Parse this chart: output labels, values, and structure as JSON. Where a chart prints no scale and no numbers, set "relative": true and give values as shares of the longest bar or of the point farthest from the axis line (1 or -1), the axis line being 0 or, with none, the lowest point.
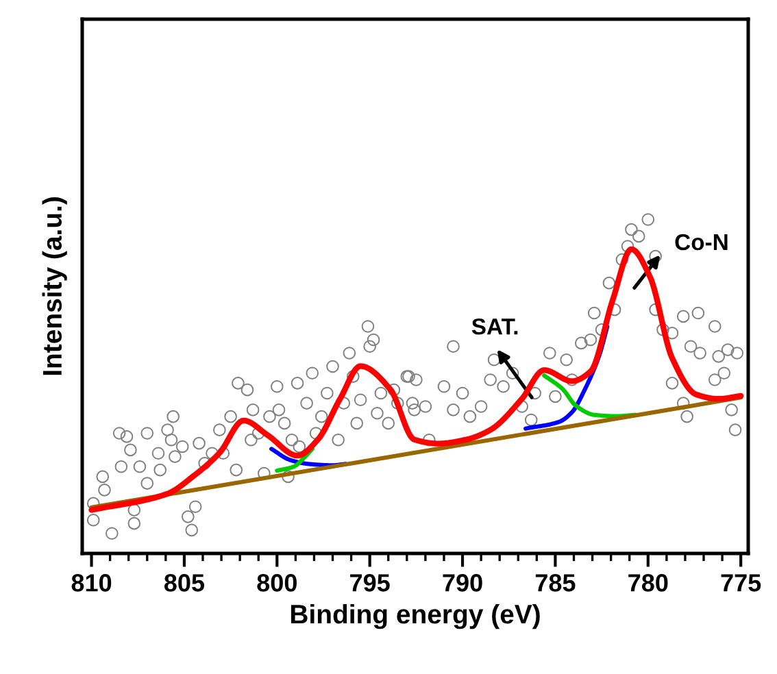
{
  "chart_data": {
    "type": "line",
    "xlabel": "Binding energy (eV)",
    "ylabel": "Intensity (a.u.)",
    "relative": true,
    "grid": false,
    "xlim": [
      810.5,
      774.6
    ],
    "xticks": [
      810,
      {
        "value": 809,
        "label": null
      },
      {
        "value": 808,
        "label": null
      },
      {
        "value": 807,
        "label": null
      },
      {
        "value": 806,
        "label": null
      },
      805,
      {
        "value": 804,
        "label": null
      },
      {
        "value": 803,
        "label": null
      },
      {
        "value": 802,
        "label": null
      },
      {
        "value": 801,
        "label": null
      },
      800,
      {
        "value": 799,
        "label": null
      },
      {
        "value": 798,
        "label": null
      },
      {
        "value": 797,
        "label": null
      },
      {
        "value": 796,
        "label": null
      },
      795,
      {
        "value": 794,
        "label": null
      },
      {
        "value": 793,
        "label": null
      },
      {
        "value": 792,
        "label": null
      },
      {
        "value": 791,
        "label": null
      },
      790,
      {
        "value": 789,
        "label": null
      },
      {
        "value": 788,
        "label": null
      },
      {
        "value": 787,
        "label": null
      },
      {
        "value": 786,
        "label": null
      },
      785,
      {
        "value": 784,
        "label": null
      },
      {
        "value": 783,
        "label": null
      },
      {
        "value": 782,
        "label": null
      },
      {
        "value": 781,
        "label": null
      },
      780,
      {
        "value": 779,
        "label": null
      },
      {
        "value": 778,
        "label": null
      },
      {
        "value": 777,
        "label": null
      },
      {
        "value": 776,
        "label": null
      },
      775
    ],
    "series": [
      {
        "type": "scatter",
        "marker": "circle",
        "color": "#808080",
        "x": [
          809.9,
          809.9,
          809.4,
          809.3,
          808.9,
          808.5,
          808.4,
          808.1,
          807.9,
          807.7,
          807.7,
          807.4,
          807.0,
          807.0,
          806.4,
          806.3,
          805.9,
          805.7,
          805.6,
          805.5,
          805.1,
          804.8,
          804.6,
          804.4,
          804.2,
          803.9,
          803.5,
          803.1,
          802.9,
          802.5,
          802.2,
          802.1,
          801.6,
          801.4,
          801.3,
          801.0,
          800.7,
          800.4,
          800.0,
          799.9,
          799.6,
          799.4,
          799.2,
          798.9,
          798.8,
          798.4,
          798.1,
          797.9,
          797.6,
          797.3,
          797.0,
          796.7,
          796.4,
          796.1,
          795.9,
          795.7,
          795.5,
          795.1,
          795.0,
          794.8,
          794.6,
          794.4,
          794.0,
          793.7,
          793.5,
          792.9,
          792.6,
          793.0,
          792.5,
          792.7,
          792.0,
          791.8,
          791.0,
          790.5,
          790.5,
          790.0,
          789.6,
          789.0,
          788.5,
          788.3,
          787.8,
          787.3,
          786.8,
          786.3,
          786.1,
          785.3,
          785.0,
          784.4,
          784.1,
          783.6,
          783.1,
          782.9,
          782.5,
          782.1,
          781.8,
          781.4,
          781.1,
          780.9,
          780.5,
          780.0,
          779.6,
          779.6,
          779.2,
          778.7,
          778.1,
          777.7,
          777.3,
          777.2,
          776.4,
          776.2,
          775.9,
          775.7,
          775.2,
          775.5,
          775.3,
          778.1,
          777.9,
          778.7,
          776.4
        ],
        "values": [
          0.1,
          0.15,
          0.23,
          0.19,
          0.06,
          0.36,
          0.26,
          0.35,
          0.31,
          0.13,
          0.09,
          0.26,
          0.21,
          0.36,
          0.3,
          0.25,
          0.37,
          0.34,
          0.41,
          0.29,
          0.32,
          0.11,
          0.07,
          0.14,
          0.33,
          0.27,
          0.3,
          0.37,
          0.3,
          0.41,
          0.25,
          0.51,
          0.49,
          0.34,
          0.43,
          0.36,
          0.24,
          0.41,
          0.5,
          0.43,
          0.39,
          0.23,
          0.34,
          0.51,
          0.32,
          0.45,
          0.54,
          0.36,
          0.41,
          0.48,
          0.56,
          0.34,
          0.45,
          0.6,
          0.53,
          0.39,
          0.46,
          0.68,
          0.62,
          0.64,
          0.42,
          0.48,
          0.39,
          0.49,
          0.45,
          0.53,
          0.43,
          0.53,
          0.52,
          0.45,
          0.44,
          0.34,
          0.5,
          0.62,
          0.43,
          0.48,
          0.41,
          0.44,
          0.52,
          0.58,
          0.5,
          0.54,
          0.44,
          0.4,
          0.48,
          0.6,
          0.47,
          0.58,
          0.52,
          0.63,
          0.64,
          0.72,
          0.67,
          0.81,
          0.73,
          0.88,
          0.92,
          0.97,
          0.95,
          1.0,
          0.89,
          0.73,
          0.67,
          0.66,
          0.71,
          0.62,
          0.72,
          0.6,
          0.68,
          0.59,
          0.54,
          0.61,
          0.6,
          0.43,
          0.37,
          0.45,
          0.41,
          0.51,
          0.52
        ]
      },
      {
        "type": "line",
        "color": "#0000ff",
        "x": [
          800.3,
          799.3,
          798.3,
          797.0,
          796.3
        ],
        "values": [
          0.313,
          0.28,
          0.268,
          0.264,
          0.268
        ]
      },
      {
        "type": "line",
        "color": "#00cc00",
        "x": [
          800.0,
          799.1,
          798.5,
          798.1
        ],
        "values": [
          0.248,
          0.26,
          0.289,
          0.313
        ]
      },
      {
        "type": "line",
        "color": "#0000ff",
        "x": [
          786.6,
          784.8,
          784.1,
          783.4,
          782.6,
          782.2
        ],
        "values": [
          0.374,
          0.394,
          0.423,
          0.492,
          0.598,
          0.679
        ]
      },
      {
        "type": "line",
        "color": "#00cc00",
        "x": [
          785.6,
          784.6,
          783.9,
          782.9,
          781.7,
          780.7
        ],
        "values": [
          0.533,
          0.492,
          0.443,
          0.415,
          0.411,
          0.415
        ]
      },
      {
        "color": "#996600",
        "x": [
          810.0,
          775.0
        ],
        "values": [
          0.138,
          0.467
        ]
      },
      {
        "color": "#ff0000",
        "x": [
          810.0,
          805.9,
          804.5,
          803.1,
          801.8,
          800.5,
          798.9,
          797.8,
          796.6,
          795.5,
          793.9,
          792.6,
          791.3,
          789.8,
          788.5,
          786.8,
          785.6,
          784.1,
          783.1,
          781.9,
          780.9,
          779.9,
          778.7,
          777.4,
          776.2,
          775.0
        ],
        "values": [
          0.13,
          0.179,
          0.232,
          0.301,
          0.398,
          0.354,
          0.293,
          0.341,
          0.463,
          0.561,
          0.492,
          0.341,
          0.329,
          0.341,
          0.37,
          0.463,
          0.549,
          0.516,
          0.545,
          0.76,
          0.911,
          0.829,
          0.585,
          0.476,
          0.463,
          0.472
        ]
      }
    ],
    "annotations": [
      "SAT.",
      "Co-N"
    ]
  }
}
